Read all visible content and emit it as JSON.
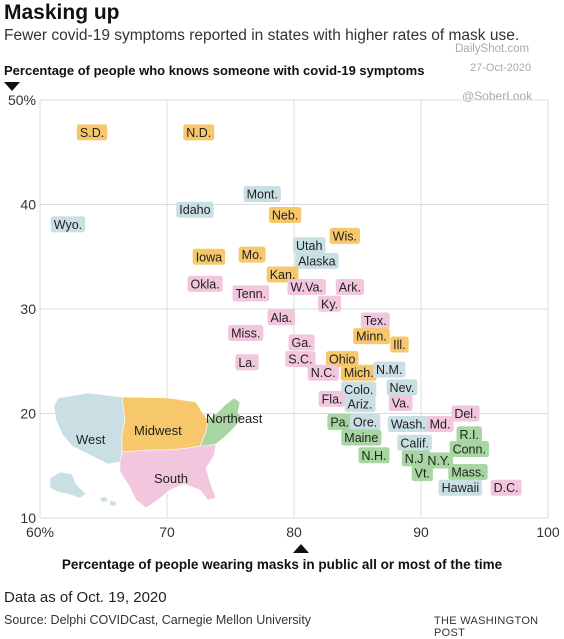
{
  "title": "Masking up",
  "subtitle": "Fewer covid-19 symptoms reported in states with higher rates of mask use.",
  "watermarks": [
    "DailyShot.com",
    "27-Oct-2020",
    "@SoberLook"
  ],
  "note": "Data as of Oct. 19, 2020",
  "source": "Source: Delphi COVIDCast, Carnegie Mellon University",
  "credit": "THE WASHINGTON POST",
  "colors": {
    "Midwest": "#f7c86b",
    "West": "#c9dfe3",
    "South": "#f2c6dd",
    "Northeast": "#a8d6a2"
  },
  "chart_data": {
    "type": "scatter",
    "xlabel": "Percentage of people wearing masks in public all or most of the time",
    "ylabel": "Percentage of people who knows someone with covid-19 symptoms",
    "xlim": [
      60,
      100
    ],
    "ylim": [
      10,
      50
    ],
    "xticks": [
      "60%",
      "70",
      "80",
      "90",
      "100"
    ],
    "yticks": [
      "10",
      "20",
      "30",
      "40",
      "50%"
    ],
    "grid": true,
    "inset_map": {
      "labels": [
        "West",
        "Midwest",
        "Northeast",
        "South"
      ]
    },
    "points": [
      {
        "label": "S.D.",
        "region": "Midwest",
        "x": 64.1,
        "y": 46.9
      },
      {
        "label": "N.D.",
        "region": "Midwest",
        "x": 72.5,
        "y": 46.9
      },
      {
        "label": "Wyo.",
        "region": "West",
        "x": 62.2,
        "y": 38.1
      },
      {
        "label": "Idaho",
        "region": "West",
        "x": 72.2,
        "y": 39.5
      },
      {
        "label": "Mont.",
        "region": "West",
        "x": 77.5,
        "y": 41.0
      },
      {
        "label": "Neb.",
        "region": "Midwest",
        "x": 79.3,
        "y": 39.0
      },
      {
        "label": "Wis.",
        "region": "Midwest",
        "x": 84.0,
        "y": 37.0
      },
      {
        "label": "Utah",
        "region": "West",
        "x": 81.2,
        "y": 36.1
      },
      {
        "label": "Alaska",
        "region": "West",
        "x": 81.8,
        "y": 34.6
      },
      {
        "label": "Iowa",
        "region": "Midwest",
        "x": 73.3,
        "y": 35.0
      },
      {
        "label": "Mo.",
        "region": "Midwest",
        "x": 76.7,
        "y": 35.2
      },
      {
        "label": "Kan.",
        "region": "Midwest",
        "x": 79.1,
        "y": 33.3
      },
      {
        "label": "Okla.",
        "region": "South",
        "x": 73.0,
        "y": 32.4
      },
      {
        "label": "Tenn.",
        "region": "South",
        "x": 76.6,
        "y": 31.5
      },
      {
        "label": "W.Va.",
        "region": "South",
        "x": 81.0,
        "y": 32.1
      },
      {
        "label": "Ark.",
        "region": "South",
        "x": 84.4,
        "y": 32.1
      },
      {
        "label": "Ky.",
        "region": "South",
        "x": 82.8,
        "y": 30.5
      },
      {
        "label": "Ala.",
        "region": "South",
        "x": 79.0,
        "y": 29.2
      },
      {
        "label": "Tex.",
        "region": "South",
        "x": 86.4,
        "y": 28.9
      },
      {
        "label": "Miss.",
        "region": "South",
        "x": 76.2,
        "y": 27.7
      },
      {
        "label": "Minn.",
        "region": "Midwest",
        "x": 86.1,
        "y": 27.4
      },
      {
        "label": "Ill.",
        "region": "Midwest",
        "x": 88.3,
        "y": 26.6
      },
      {
        "label": "Ga.",
        "region": "South",
        "x": 80.6,
        "y": 26.8
      },
      {
        "label": "S.C.",
        "region": "South",
        "x": 80.5,
        "y": 25.2
      },
      {
        "label": "Ohio",
        "region": "Midwest",
        "x": 83.8,
        "y": 25.2
      },
      {
        "label": "La.",
        "region": "South",
        "x": 76.3,
        "y": 24.9
      },
      {
        "label": "N.C.",
        "region": "South",
        "x": 82.3,
        "y": 23.9
      },
      {
        "label": "Mich.",
        "region": "Midwest",
        "x": 85.1,
        "y": 23.9
      },
      {
        "label": "N.M.",
        "region": "West",
        "x": 87.5,
        "y": 24.2
      },
      {
        "label": "Colo.",
        "region": "West",
        "x": 85.1,
        "y": 22.3
      },
      {
        "label": "Nev.",
        "region": "West",
        "x": 88.5,
        "y": 22.5
      },
      {
        "label": "Fla.",
        "region": "South",
        "x": 83.0,
        "y": 21.4
      },
      {
        "label": "Ariz.",
        "region": "West",
        "x": 85.2,
        "y": 20.9
      },
      {
        "label": "Va.",
        "region": "South",
        "x": 88.4,
        "y": 21.0
      },
      {
        "label": "Del.",
        "region": "South",
        "x": 93.5,
        "y": 20.0
      },
      {
        "label": "Pa.",
        "region": "Northeast",
        "x": 83.6,
        "y": 19.2
      },
      {
        "label": "Ore.",
        "region": "West",
        "x": 85.6,
        "y": 19.2
      },
      {
        "label": "Wash.",
        "region": "West",
        "x": 89.0,
        "y": 19.0
      },
      {
        "label": "Md.",
        "region": "South",
        "x": 91.5,
        "y": 19.0
      },
      {
        "label": "R.I.",
        "region": "Northeast",
        "x": 93.8,
        "y": 18.0
      },
      {
        "label": "Maine",
        "region": "Northeast",
        "x": 85.3,
        "y": 17.7
      },
      {
        "label": "Calif.",
        "region": "West",
        "x": 89.5,
        "y": 17.2
      },
      {
        "label": "Conn.",
        "region": "Northeast",
        "x": 93.8,
        "y": 16.6
      },
      {
        "label": "N.H.",
        "region": "Northeast",
        "x": 86.3,
        "y": 16.0
      },
      {
        "label": "N.J.",
        "region": "Northeast",
        "x": 89.6,
        "y": 15.7
      },
      {
        "label": "N.Y.",
        "region": "Northeast",
        "x": 91.4,
        "y": 15.5
      },
      {
        "label": "Vt.",
        "region": "Northeast",
        "x": 90.1,
        "y": 14.3
      },
      {
        "label": "Mass.",
        "region": "Northeast",
        "x": 93.7,
        "y": 14.4
      },
      {
        "label": "Hawaii",
        "region": "West",
        "x": 93.1,
        "y": 12.9
      },
      {
        "label": "D.C.",
        "region": "South",
        "x": 96.7,
        "y": 12.9
      }
    ]
  }
}
